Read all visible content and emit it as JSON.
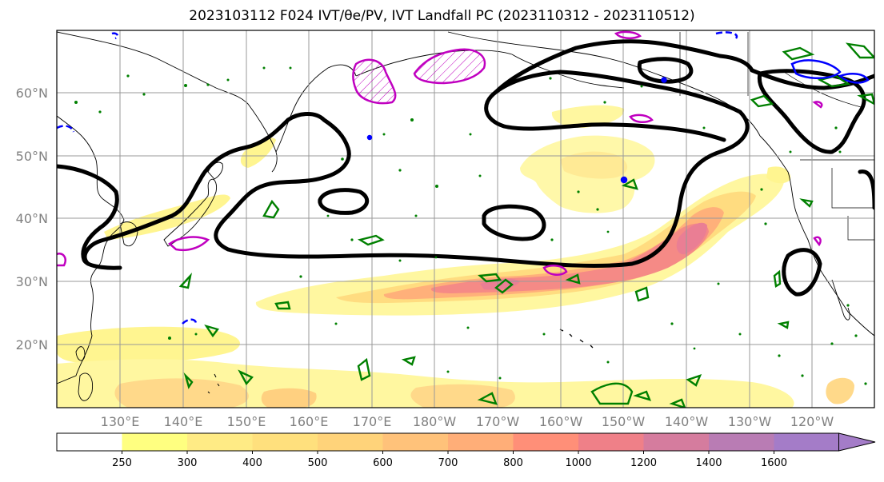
{
  "title": "2023103112 F024 IVT/θe/PV, IVT Landfall PC (2023110312 - 2023110512)",
  "map": {
    "lat_labels": [
      "60°N",
      "50°N",
      "40°N",
      "30°N",
      "20°N"
    ],
    "lon_labels": [
      "130°E",
      "140°E",
      "150°E",
      "160°E",
      "170°E",
      "180°W",
      "170°W",
      "160°W",
      "150°W",
      "140°W",
      "130°W",
      "120°W"
    ],
    "extent": {
      "lon_min": 120,
      "lon_max": 250,
      "lat_min": 10,
      "lat_max": 70
    },
    "layers": {
      "ivt_fill_colors": [
        "#ffffff",
        "#ffff80",
        "#ffed8a",
        "#ffe080",
        "#ffd27a",
        "#ffbf7a",
        "#ffab78",
        "#ff8c78",
        "#f07a80",
        "#d97a9a",
        "#b87ab8",
        "#a87ac4"
      ],
      "theta_e_contour_color": "#000000",
      "pv_contour_color": "#008000",
      "pc_positive_color": "#c000c0",
      "pc_negative_color": "#0000ff"
    }
  },
  "colorbar": {
    "labels": [
      "250",
      "300",
      "400",
      "500",
      "600",
      "700",
      "800",
      "1000",
      "1200",
      "1400",
      "1600"
    ],
    "colors": [
      "#ffffff",
      "#ffff80",
      "#ffeb85",
      "#ffe07d",
      "#ffd37a",
      "#ffc27a",
      "#ffae78",
      "#ff8f78",
      "#ef8088",
      "#d57c9e",
      "#b97cb4",
      "#a47cc8"
    ]
  }
}
